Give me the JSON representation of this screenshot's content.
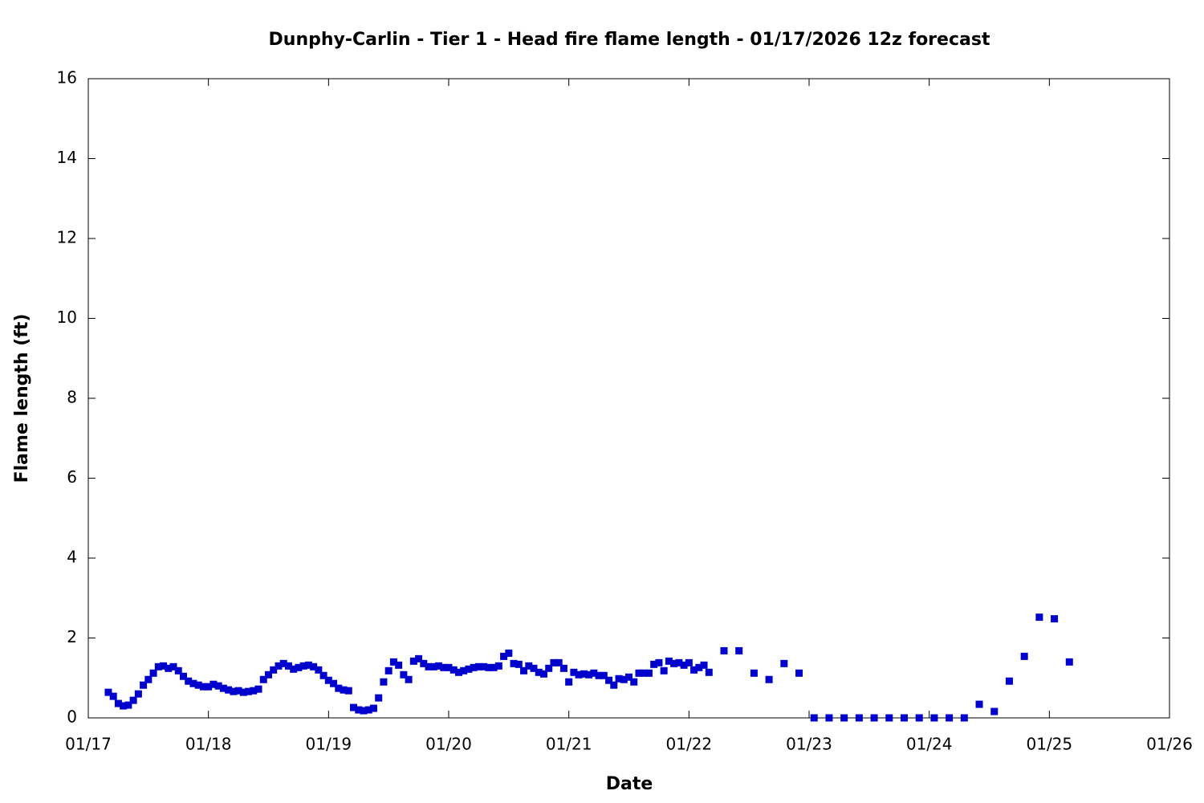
{
  "chart_data": {
    "type": "scatter",
    "title": "Dunphy-Carlin - Tier 1 - Head fire flame length - 01/17/2026 12z forecast",
    "xlabel": "Date",
    "ylabel": "Flame length (ft)",
    "x": [
      4,
      5,
      6,
      7,
      8,
      9,
      10,
      11,
      12,
      13,
      14,
      15,
      16,
      17,
      18,
      19,
      20,
      21,
      22,
      23,
      24,
      25,
      26,
      27,
      28,
      29,
      30,
      31,
      32,
      33,
      34,
      35,
      36,
      37,
      38,
      39,
      40,
      41,
      42,
      43,
      44,
      45,
      46,
      47,
      48,
      49,
      50,
      51,
      52,
      53,
      54,
      55,
      56,
      57,
      58,
      59,
      60,
      61,
      62,
      63,
      64,
      65,
      66,
      67,
      68,
      69,
      70,
      71,
      72,
      73,
      74,
      75,
      76,
      77,
      78,
      79,
      80,
      81,
      82,
      83,
      84,
      85,
      86,
      87,
      88,
      89,
      90,
      91,
      92,
      93,
      94,
      95,
      96,
      97,
      98,
      99,
      100,
      101,
      102,
      103,
      104,
      105,
      106,
      107,
      108,
      109,
      110,
      111,
      112,
      113,
      114,
      115,
      116,
      117,
      118,
      119,
      120,
      121,
      122,
      123,
      124,
      127,
      130,
      133,
      136,
      139,
      142,
      145,
      148,
      151,
      154,
      157,
      160,
      163,
      166,
      169,
      172,
      175,
      178,
      181,
      184,
      187,
      190,
      193,
      196
    ],
    "values": [
      0.64,
      0.54,
      0.36,
      0.3,
      0.32,
      0.44,
      0.6,
      0.82,
      0.96,
      1.12,
      1.28,
      1.3,
      1.24,
      1.28,
      1.18,
      1.04,
      0.92,
      0.86,
      0.82,
      0.78,
      0.78,
      0.84,
      0.8,
      0.74,
      0.7,
      0.66,
      0.68,
      0.64,
      0.66,
      0.68,
      0.72,
      0.96,
      1.08,
      1.2,
      1.3,
      1.36,
      1.3,
      1.22,
      1.26,
      1.3,
      1.32,
      1.28,
      1.2,
      1.06,
      0.94,
      0.86,
      0.74,
      0.7,
      0.68,
      0.26,
      0.2,
      0.18,
      0.2,
      0.24,
      0.5,
      0.9,
      1.18,
      1.4,
      1.32,
      1.08,
      0.96,
      1.42,
      1.48,
      1.36,
      1.28,
      1.28,
      1.3,
      1.26,
      1.26,
      1.2,
      1.14,
      1.18,
      1.22,
      1.26,
      1.28,
      1.28,
      1.26,
      1.26,
      1.3,
      1.54,
      1.62,
      1.36,
      1.34,
      1.18,
      1.3,
      1.24,
      1.14,
      1.1,
      1.24,
      1.38,
      1.38,
      1.24,
      0.9,
      1.14,
      1.08,
      1.1,
      1.08,
      1.12,
      1.06,
      1.06,
      0.94,
      0.82,
      0.98,
      0.96,
      1.02,
      0.9,
      1.12,
      1.12,
      1.12,
      1.34,
      1.38,
      1.18,
      1.42,
      1.36,
      1.38,
      1.32,
      1.38,
      1.2,
      1.26,
      1.32,
      1.14,
      1.68,
      1.68,
      1.12,
      0.96,
      1.36,
      1.12,
      0,
      0,
      0,
      0,
      0,
      0,
      0,
      0,
      0,
      0,
      0,
      0.34,
      0.16,
      0.92,
      1.54,
      2.52,
      2.48,
      1.4
    ],
    "color": "#0000cd",
    "xlim": [
      0,
      216
    ],
    "xticks": [
      {
        "value": 0,
        "label": "01/17"
      },
      {
        "value": 24,
        "label": "01/18"
      },
      {
        "value": 48,
        "label": "01/19"
      },
      {
        "value": 72,
        "label": "01/20"
      },
      {
        "value": 96,
        "label": "01/21"
      },
      {
        "value": 120,
        "label": "01/22"
      },
      {
        "value": 144,
        "label": "01/23"
      },
      {
        "value": 168,
        "label": "01/24"
      },
      {
        "value": 192,
        "label": "01/25"
      },
      {
        "value": 216,
        "label": "01/26"
      }
    ],
    "ylim": [
      0,
      16
    ],
    "yticks": [
      0,
      2,
      4,
      6,
      8,
      10,
      12,
      14,
      16
    ],
    "grid": false
  }
}
